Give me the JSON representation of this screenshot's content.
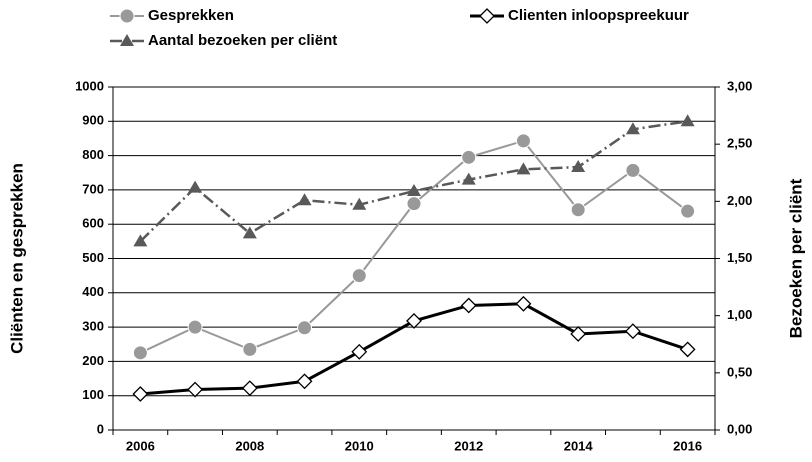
{
  "chart_data": {
    "type": "line",
    "categories": [
      "2006",
      null,
      "2008",
      null,
      "2010",
      null,
      "2012",
      null,
      "2014",
      null,
      "2016"
    ],
    "y_label": "Cliënten en gesprekken",
    "y2_label": "Bezoeken per cliënt",
    "ylim": [
      0,
      1000
    ],
    "yticks": [
      0,
      100,
      200,
      300,
      400,
      500,
      600,
      700,
      800,
      900,
      1000
    ],
    "y2lim": [
      0,
      3
    ],
    "y2ticks": [
      {
        "value": 0,
        "label": "0,00"
      },
      {
        "value": 0.5,
        "label": "0,50"
      },
      {
        "value": 1,
        "label": "1,00"
      },
      {
        "value": 1.5,
        "label": "1,50"
      },
      {
        "value": 2,
        "label": "2,00"
      },
      {
        "value": 2.5,
        "label": "2,50"
      },
      {
        "value": 3,
        "label": "3,00"
      }
    ],
    "grid": true,
    "series": [
      {
        "name": "Gesprekken",
        "color": "#999999",
        "marker": "circle",
        "values": [
          225,
          300,
          235,
          298,
          450,
          660,
          795,
          843,
          642,
          757,
          638
        ]
      },
      {
        "name": "Clienten inloopspreekuur",
        "color": "#000000",
        "marker": "diamond",
        "values": [
          105,
          118,
          122,
          142,
          228,
          318,
          363,
          368,
          280,
          288,
          235
        ]
      },
      {
        "name": "Aantal bezoeken per cliënt",
        "color": "#595959",
        "marker": "triangle",
        "axis": "y2",
        "values": [
          1.65,
          2.12,
          1.72,
          2.01,
          1.97,
          2.09,
          2.19,
          2.28,
          2.3,
          2.63,
          2.7
        ]
      }
    ]
  }
}
